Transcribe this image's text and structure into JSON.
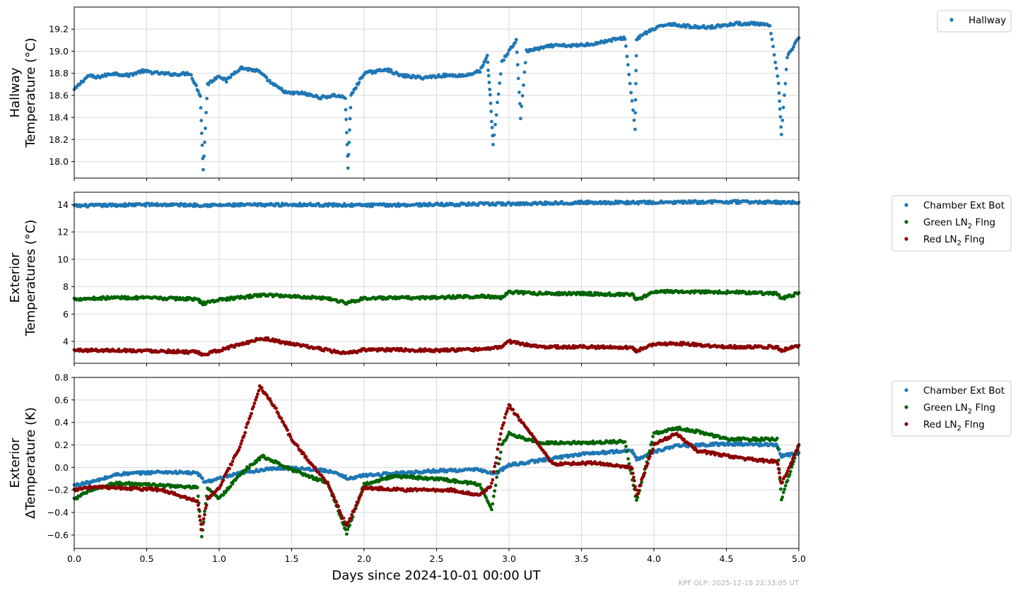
{
  "footer": "KPF QLP: 2025-12-18 22:33:05 UT",
  "xlabel": "Days since 2024-10-01 00:00 UT",
  "xlim": [
    0,
    5
  ],
  "xticks": [
    "0.0",
    "0.5",
    "1.0",
    "1.5",
    "2.0",
    "2.5",
    "3.0",
    "3.5",
    "4.0",
    "4.5",
    "5.0"
  ],
  "chart_data": [
    {
      "type": "scatter",
      "ylabel_lines": [
        "Hallway",
        "Temperature (°C)"
      ],
      "ylim": [
        17.85,
        19.4
      ],
      "yticks": [
        "18.0",
        "18.2",
        "18.4",
        "18.6",
        "18.8",
        "19.0",
        "19.2"
      ],
      "grid": true,
      "legend": "upper-right-outside",
      "series": [
        {
          "name": "Hallway",
          "legend_label": "Hallway",
          "color": "#1f77b4",
          "x": [
            0.0,
            0.05,
            0.1,
            0.15,
            0.27,
            0.37,
            0.47,
            0.58,
            0.7,
            0.8,
            0.87,
            0.89,
            0.92,
            1.0,
            1.05,
            1.1,
            1.15,
            1.27,
            1.37,
            1.47,
            1.57,
            1.7,
            1.8,
            1.87,
            1.89,
            1.91,
            2.0,
            2.1,
            2.15,
            2.25,
            2.4,
            2.55,
            2.7,
            2.8,
            2.85,
            2.87,
            2.89,
            2.95,
            3.0,
            3.05,
            3.08,
            3.12,
            3.3,
            3.45,
            3.6,
            3.7,
            3.8,
            3.87,
            3.88,
            3.92,
            4.0,
            4.1,
            4.15,
            4.27,
            4.4,
            4.57,
            4.7,
            4.8,
            4.86,
            4.88,
            4.92,
            5.0
          ],
          "y": [
            18.65,
            18.72,
            18.78,
            18.76,
            18.8,
            18.78,
            18.82,
            18.8,
            18.79,
            18.8,
            18.6,
            17.92,
            18.7,
            18.78,
            18.73,
            18.8,
            18.85,
            18.82,
            18.7,
            18.62,
            18.62,
            18.58,
            18.6,
            18.58,
            17.95,
            18.6,
            18.8,
            18.82,
            18.84,
            18.78,
            18.76,
            18.78,
            18.78,
            18.82,
            18.95,
            18.6,
            18.15,
            18.9,
            19.0,
            19.1,
            18.4,
            19.0,
            19.05,
            19.05,
            19.07,
            19.1,
            19.12,
            18.3,
            19.1,
            19.15,
            19.2,
            19.25,
            19.24,
            19.22,
            19.22,
            19.25,
            19.25,
            19.23,
            18.7,
            18.25,
            18.95,
            19.12
          ]
        }
      ]
    },
    {
      "type": "scatter",
      "ylabel_lines": [
        "Exterior",
        "Temperatures (°C)"
      ],
      "ylim": [
        2.4,
        14.9
      ],
      "yticks": [
        "4",
        "6",
        "8",
        "10",
        "12",
        "14"
      ],
      "grid": true,
      "legend": "upper-right-outside",
      "series": [
        {
          "name": "Chamber Ext Bot",
          "legend_label": "Chamber Ext Bot",
          "color": "#1f77b4",
          "x": [
            0.0,
            0.5,
            1.0,
            1.5,
            2.0,
            2.5,
            3.0,
            3.5,
            4.0,
            4.5,
            5.0
          ],
          "y": [
            13.9,
            14.0,
            13.95,
            14.0,
            13.95,
            14.0,
            14.05,
            14.15,
            14.15,
            14.2,
            14.15
          ]
        },
        {
          "name": "Green LN2 Flng",
          "legend_label": "Green LN",
          "legend_sub": "2",
          "legend_suffix": " Flng",
          "color": "#006400",
          "x": [
            0.0,
            0.3,
            0.6,
            0.85,
            0.88,
            1.0,
            1.15,
            1.3,
            1.5,
            1.75,
            1.88,
            2.0,
            2.5,
            2.8,
            2.95,
            3.0,
            3.2,
            3.5,
            3.85,
            3.88,
            4.0,
            4.15,
            4.5,
            4.85,
            4.88,
            5.0
          ],
          "y": [
            7.1,
            7.2,
            7.15,
            7.1,
            6.75,
            7.05,
            7.2,
            7.4,
            7.3,
            7.15,
            6.8,
            7.15,
            7.2,
            7.3,
            7.2,
            7.6,
            7.5,
            7.5,
            7.4,
            7.05,
            7.6,
            7.65,
            7.6,
            7.5,
            7.1,
            7.55
          ]
        },
        {
          "name": "Red LN2 Flng",
          "legend_label": "Red LN",
          "legend_sub": "2",
          "legend_suffix": " Flng",
          "color": "#8b0000",
          "x": [
            0.0,
            0.3,
            0.6,
            0.85,
            0.88,
            1.0,
            1.15,
            1.3,
            1.45,
            1.7,
            1.88,
            2.0,
            2.5,
            2.8,
            2.95,
            3.0,
            3.2,
            3.5,
            3.85,
            3.88,
            4.0,
            4.15,
            4.5,
            4.85,
            4.88,
            5.0
          ],
          "y": [
            3.35,
            3.35,
            3.3,
            3.2,
            3.0,
            3.35,
            3.8,
            4.25,
            3.9,
            3.45,
            3.1,
            3.4,
            3.35,
            3.4,
            3.6,
            4.0,
            3.6,
            3.6,
            3.55,
            3.3,
            3.8,
            3.85,
            3.6,
            3.6,
            3.35,
            3.7
          ]
        }
      ]
    },
    {
      "type": "scatter",
      "ylabel_lines": [
        "Exterior",
        "ΔTemperature (K)"
      ],
      "ylim": [
        -0.72,
        0.8
      ],
      "yticks": [
        "−0.6",
        "−0.4",
        "−0.2",
        "0.0",
        "0.2",
        "0.4",
        "0.6",
        "0.8"
      ],
      "grid": true,
      "legend": "upper-right-outside",
      "series": [
        {
          "name": "Chamber Ext Bot",
          "legend_label": "Chamber Ext Bot",
          "color": "#1f77b4",
          "x": [
            0.0,
            0.15,
            0.3,
            0.6,
            0.85,
            0.9,
            1.0,
            1.15,
            1.3,
            1.5,
            1.75,
            1.9,
            2.0,
            2.5,
            2.8,
            2.9,
            3.0,
            3.2,
            3.5,
            3.85,
            3.88,
            4.0,
            4.15,
            4.5,
            4.85,
            4.88,
            5.0
          ],
          "y": [
            -0.16,
            -0.12,
            -0.06,
            -0.04,
            -0.05,
            -0.13,
            -0.1,
            -0.05,
            -0.02,
            0.0,
            -0.03,
            -0.1,
            -0.07,
            -0.03,
            -0.02,
            -0.06,
            0.02,
            0.06,
            0.12,
            0.15,
            0.07,
            0.14,
            0.19,
            0.21,
            0.2,
            0.1,
            0.13
          ]
        },
        {
          "name": "Green LN2 Flng",
          "legend_label": "Green LN",
          "legend_sub": "2",
          "legend_suffix": " Flng",
          "color": "#006400",
          "x": [
            0.0,
            0.15,
            0.3,
            0.6,
            0.85,
            0.88,
            0.92,
            1.0,
            1.15,
            1.3,
            1.5,
            1.75,
            1.88,
            2.0,
            2.2,
            2.5,
            2.8,
            2.88,
            2.95,
            3.0,
            3.2,
            3.5,
            3.8,
            3.88,
            4.0,
            4.15,
            4.3,
            4.5,
            4.85,
            4.88,
            5.0
          ],
          "y": [
            -0.28,
            -0.18,
            -0.14,
            -0.16,
            -0.18,
            -0.62,
            -0.18,
            -0.28,
            -0.05,
            0.1,
            -0.02,
            -0.14,
            -0.58,
            -0.15,
            -0.08,
            -0.1,
            -0.15,
            -0.38,
            0.2,
            0.3,
            0.22,
            0.22,
            0.23,
            -0.3,
            0.3,
            0.35,
            0.32,
            0.25,
            0.25,
            -0.28,
            0.2
          ]
        },
        {
          "name": "Red LN2 Flng",
          "legend_label": "Red LN",
          "legend_sub": "2",
          "legend_suffix": " Flng",
          "color": "#8b0000",
          "x": [
            0.0,
            0.15,
            0.3,
            0.6,
            0.85,
            0.88,
            0.92,
            1.0,
            1.15,
            1.28,
            1.35,
            1.4,
            1.5,
            1.75,
            1.88,
            2.0,
            2.3,
            2.6,
            2.8,
            2.88,
            2.95,
            3.0,
            3.15,
            3.3,
            3.6,
            3.85,
            3.88,
            4.0,
            4.15,
            4.3,
            4.6,
            4.85,
            4.88,
            5.0
          ],
          "y": [
            -0.2,
            -0.17,
            -0.18,
            -0.2,
            -0.3,
            -0.55,
            -0.28,
            -0.18,
            0.2,
            0.72,
            0.6,
            0.5,
            0.25,
            -0.15,
            -0.52,
            -0.18,
            -0.2,
            -0.2,
            -0.25,
            -0.15,
            0.35,
            0.55,
            0.3,
            0.03,
            0.04,
            0.0,
            -0.25,
            0.2,
            0.3,
            0.15,
            0.08,
            0.05,
            -0.15,
            0.2
          ]
        }
      ]
    }
  ]
}
